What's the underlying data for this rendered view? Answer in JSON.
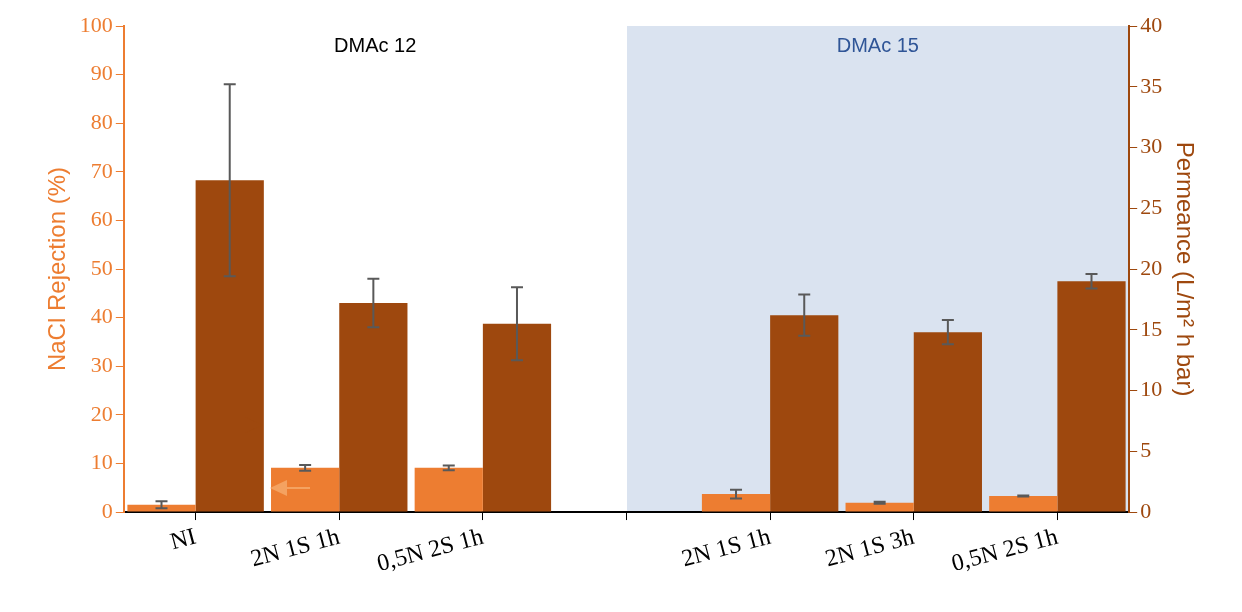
{
  "chart_data": {
    "type": "bar",
    "ylabel": "NaCl Rejection (%)",
    "y2label": "Permeance (L/m² h bar)",
    "categories": [
      "NI",
      "2N 1S 1h",
      "0,5N 2S 1h",
      null,
      "2N 1S 1h",
      "2N 1S 3h",
      "0,5N 2S 1h"
    ],
    "series": [
      {
        "color": "#ed7d31",
        "values": [
          1.5,
          9.1,
          9.1,
          null,
          3.7,
          1.9,
          3.3
        ],
        "errors": [
          0.7,
          0.6,
          0.5,
          null,
          0.9,
          0.2,
          0.1
        ]
      },
      {
        "color": "#9e480e",
        "axis": "y2",
        "values": [
          27.3,
          17.2,
          15.5,
          null,
          16.2,
          14.8,
          19.0
        ],
        "errors": [
          7.9,
          2.0,
          3.0,
          null,
          1.7,
          1.0,
          0.6
        ]
      }
    ],
    "ylim": [
      0,
      100
    ],
    "yticks": [
      0,
      10,
      20,
      30,
      40,
      50,
      60,
      70,
      80,
      90,
      100
    ],
    "y2lim": [
      0,
      40
    ],
    "y2ticks": [
      0,
      5,
      10,
      15,
      20,
      25,
      30,
      35,
      40
    ],
    "annotations": [
      "DMAc 12",
      "DMAc 15"
    ],
    "grid": false,
    "legend": false
  }
}
